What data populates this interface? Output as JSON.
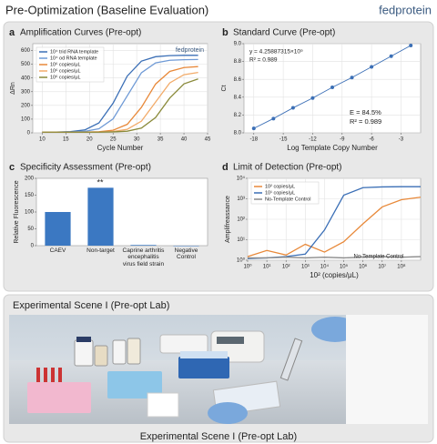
{
  "header": {
    "title": "Pre-Optimization (Baseline Evaluation)",
    "brand": "fedprotein"
  },
  "chart_data": [
    {
      "type": "line",
      "label": "a",
      "title": "Amplification Curves (Pre-opt)",
      "x_label": "Cycle Number",
      "y_label": "ΔRn",
      "x": [
        10,
        13,
        16,
        19,
        22,
        25,
        28,
        31,
        34,
        37,
        40,
        43
      ],
      "xlim": [
        8,
        45
      ],
      "xticks": [
        10,
        15,
        20,
        25,
        30,
        35,
        40,
        45
      ],
      "ylim": [
        0,
        650
      ],
      "yticks": [
        0,
        100,
        200,
        300,
        400,
        500,
        600
      ],
      "grid": true,
      "legend": "upper-left",
      "annotations": [
        "fedprotein"
      ],
      "series": [
        {
          "name": "10⁴ trid RNA template",
          "color": "#3b6fb6",
          "values": [
            5,
            6,
            9,
            21,
            72,
            216,
            414,
            523,
            555,
            563,
            565,
            565
          ]
        },
        {
          "name": "10⁴ od RNA template",
          "color": "#6f9ad6",
          "values": [
            5,
            5,
            6,
            11,
            30,
            102,
            270,
            438,
            510,
            529,
            533,
            535
          ]
        },
        {
          "name": "10⁶ copies/μL",
          "color": "#e8893a",
          "values": [
            5,
            5,
            5,
            6,
            8,
            19,
            62,
            186,
            356,
            448,
            476,
            483
          ]
        },
        {
          "name": "10⁶ copies/μL",
          "color": "#f2ab6a",
          "values": [
            5,
            5,
            5,
            5,
            6,
            10,
            26,
            85,
            225,
            364,
            424,
            440
          ]
        },
        {
          "name": "10⁶ copies/μL",
          "color": "#8a8a3a",
          "values": [
            5,
            5,
            5,
            5,
            5,
            7,
            12,
            35,
            112,
            254,
            357,
            393
          ]
        }
      ]
    },
    {
      "type": "scatter",
      "label": "b",
      "title": "Standard Curve (Pre-opt)",
      "x_label": "Log Template Copy Number",
      "y_label": "Ct",
      "xlim": [
        -19,
        -1
      ],
      "xticks": [
        -18,
        -15,
        -12,
        -9,
        -6,
        -3
      ],
      "ylim": [
        8.0,
        9.0
      ],
      "yticks": [
        {
          "value": 8,
          "label": "8.0"
        },
        8.2,
        8.4,
        8.6,
        8.8,
        {
          "value": 9,
          "label": "9.0"
        }
      ],
      "grid": true,
      "annotations": [
        "y = 4.25887315×10⁹",
        "R² = 0.989",
        "E = 84.5%",
        "R² = 0.989"
      ],
      "series": [
        {
          "name": "Standard",
          "color": "#3b6fb6",
          "x": [
            -18,
            -16,
            -14,
            -12,
            -10,
            -8,
            -6,
            -4,
            -2
          ],
          "values": [
            8.05,
            8.16,
            8.28,
            8.39,
            8.51,
            8.62,
            8.74,
            8.86,
            8.98
          ]
        }
      ]
    },
    {
      "type": "bar",
      "label": "c",
      "title": "Specificity Assessment (Pre-opt)",
      "y_label": "Relative Fluorescence",
      "categories": [
        "CAEV",
        "Non-target",
        "Caprine arthritis encephalitis virus field strain",
        "Negative Control"
      ],
      "values": [
        100,
        172,
        2,
        0
      ],
      "color": "#3b78c2",
      "ylim": [
        0,
        200
      ],
      "yticks": [
        0,
        50,
        100,
        150,
        200
      ],
      "grid": false,
      "annotations": [
        "**"
      ]
    },
    {
      "type": "line",
      "label": "d",
      "title": "Limit of Detection (Pre-opt)",
      "x_label": "10² (copies/μL)",
      "y_label": "Amplifreassance",
      "xlog": true,
      "ylog": true,
      "x": [
        1,
        10,
        100,
        1000,
        10000,
        100000,
        1000000,
        10000000,
        100000000,
        1000000000
      ],
      "xlim": [
        1,
        1000000000
      ],
      "xticks": [
        {
          "value": 1,
          "label": "10⁰"
        },
        {
          "value": 10,
          "label": "10¹"
        },
        {
          "value": 100,
          "label": "10²"
        },
        {
          "value": 1000,
          "label": "10³"
        },
        {
          "value": 10000,
          "label": "10⁴"
        },
        {
          "value": 100000,
          "label": "10⁵"
        },
        {
          "value": 1000000,
          "label": "10⁶"
        },
        {
          "value": 10000000,
          "label": "10⁷"
        },
        {
          "value": 100000000,
          "label": "10⁸"
        }
      ],
      "ylim": [
        1,
        10000
      ],
      "yticks": [
        {
          "value": 1,
          "label": "10⁰"
        },
        {
          "value": 10,
          "label": "10¹"
        },
        {
          "value": 100,
          "label": "10²"
        },
        {
          "value": 1000,
          "label": "10³"
        },
        {
          "value": 10000,
          "label": "10⁴"
        }
      ],
      "grid": true,
      "legend": "upper-left",
      "annotations": [
        "No-Template Control"
      ],
      "series": [
        {
          "name": "10² copies/μL",
          "color": "#e8893a",
          "values": [
            1.5,
            3,
            1.8,
            6,
            2.5,
            8,
            60,
            400,
            900,
            1200
          ]
        },
        {
          "name": "10¹ copies/μL",
          "color": "#3b6fb6",
          "values": [
            1.2,
            1.3,
            1.5,
            2,
            30,
            1500,
            3500,
            3800,
            3900,
            3900
          ]
        },
        {
          "name": "No-Template Control",
          "color": "#8a8a8a",
          "values": [
            1.3,
            1.3,
            1.4,
            1.3,
            1.4,
            1.3,
            1.4,
            1.5,
            1.4,
            1.5
          ]
        }
      ]
    }
  ],
  "scene": {
    "title": "Experimental Scene I (Pre-opt Lab)",
    "caption": "Experimental Scene I (Pre-opt Lab)"
  }
}
